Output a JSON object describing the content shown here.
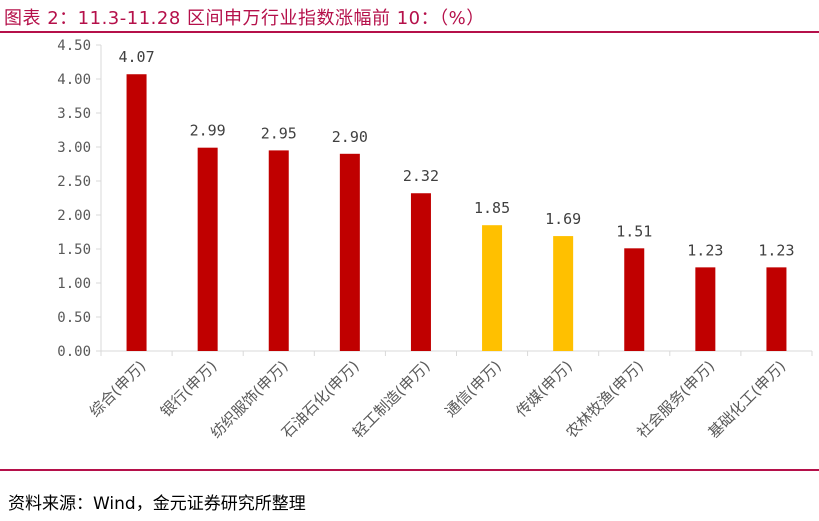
{
  "title": "图表 2：11.3-11.28 区间申万行业指数涨幅前 10：（%）",
  "source": "资料来源：Wind，金元证券研究所整理",
  "colors": {
    "brand": "#b5104a",
    "bar_red": "#c00000",
    "bar_yellow": "#ffc000",
    "axis": "#d9d9d9",
    "text": "#595959",
    "label": "#404040"
  },
  "chart_data": {
    "type": "bar",
    "categories": [
      "综合(申万)",
      "银行(申万)",
      "纺织服饰(申万)",
      "石油石化(申万)",
      "轻工制造(申万)",
      "通信(申万)",
      "传媒(申万)",
      "农林牧渔(申万)",
      "社会服务(申万)",
      "基础化工(申万)"
    ],
    "values": [
      4.07,
      2.99,
      2.95,
      2.9,
      2.32,
      1.85,
      1.69,
      1.51,
      1.23,
      1.23
    ],
    "value_labels": [
      "4.07",
      "2.99",
      "2.95",
      "2.90",
      "2.32",
      "1.85",
      "1.69",
      "1.51",
      "1.23",
      "1.23"
    ],
    "bar_colors": [
      "#c00000",
      "#c00000",
      "#c00000",
      "#c00000",
      "#c00000",
      "#ffc000",
      "#ffc000",
      "#c00000",
      "#c00000",
      "#c00000"
    ],
    "ylim": [
      0,
      4.5
    ],
    "yticks": [
      "0.00",
      "0.50",
      "1.00",
      "1.50",
      "2.00",
      "2.50",
      "3.00",
      "3.50",
      "4.00",
      "4.50"
    ],
    "grid": false,
    "legend": "none"
  }
}
